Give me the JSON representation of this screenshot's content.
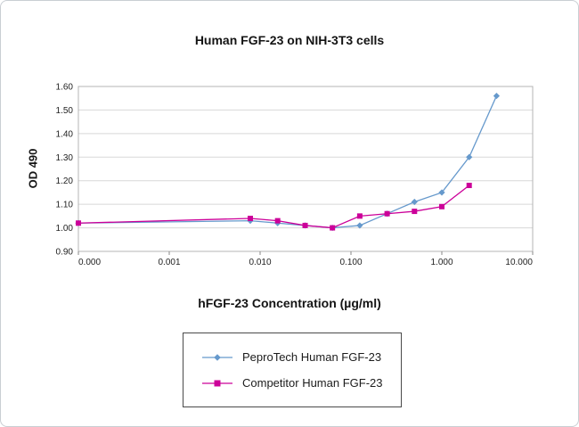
{
  "page": {
    "background": "#ffffff",
    "frame_border": "#c9ced3"
  },
  "chart_data": {
    "type": "line",
    "title": "Human FGF-23 on NIH-3T3 cells",
    "xlabel": "hFGF-23 Concentration (µg/ml)",
    "ylabel": "OD 490",
    "x_axis_log": true,
    "xlog_range": [
      -4,
      1
    ],
    "ylim": [
      0.9,
      1.6
    ],
    "ytick_step": 0.1,
    "xticks": [
      "0.000",
      "0.001",
      "0.010",
      "0.100",
      "1.000",
      "10.000"
    ],
    "grid": "horizontal",
    "legend_position": "bottom-center-boxed",
    "colors": {
      "grid": "#d8d8d8",
      "plot_border": "#b4b4b4",
      "axis": "#888888"
    },
    "series": [
      {
        "name": "PeproTech Human FGF-23",
        "color": "#6699cc",
        "marker": "diamond",
        "x": [
          0,
          0.0078,
          0.0156,
          0.0313,
          0.0625,
          0.125,
          0.25,
          0.5,
          1.0,
          2.0,
          4.0
        ],
        "y": [
          1.02,
          1.03,
          1.02,
          1.01,
          1.0,
          1.01,
          1.06,
          1.11,
          1.15,
          1.3,
          1.56
        ]
      },
      {
        "name": "Competitor Human FGF-23",
        "color": "#cc0099",
        "marker": "square",
        "x": [
          0,
          0.0078,
          0.0156,
          0.0313,
          0.0625,
          0.125,
          0.25,
          0.5,
          1.0,
          2.0
        ],
        "y": [
          1.02,
          1.04,
          1.03,
          1.01,
          1.0,
          1.05,
          1.06,
          1.07,
          1.09,
          1.18
        ]
      }
    ]
  }
}
